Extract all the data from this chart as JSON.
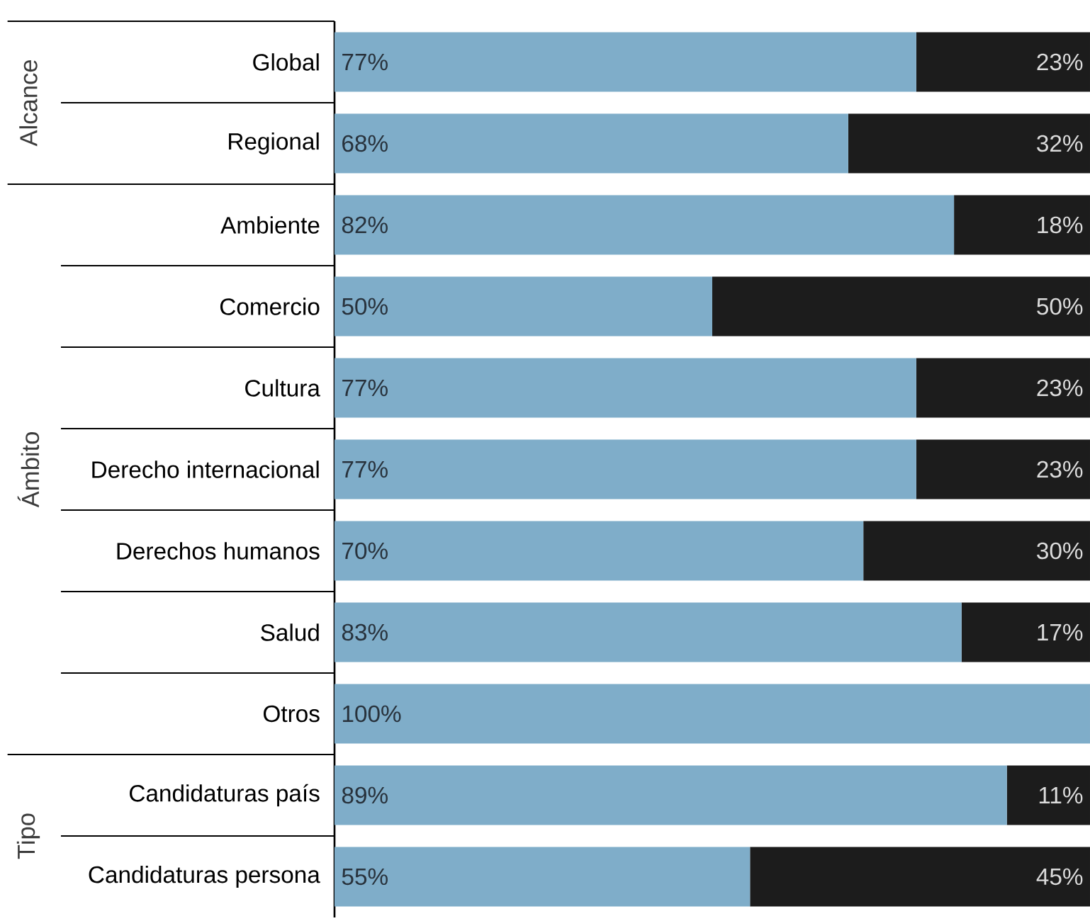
{
  "chart_data": {
    "type": "bar",
    "orientation": "horizontal",
    "stacked": true,
    "xlim": [
      0,
      100
    ],
    "tick_labels": "y",
    "categories": [
      "Global",
      "Regional",
      "Ambiente",
      "Comercio",
      "Cultura",
      "Derecho internacional",
      "Derechos humanos",
      "Salud",
      "Otros",
      "Candidaturas país",
      "Candidaturas persona"
    ],
    "annotations": [
      "Alcance",
      "Ámbito",
      "Tipo"
    ],
    "series": [
      {
        "color": "#7fadc9",
        "values": [
          77,
          68,
          82,
          50,
          77,
          77,
          70,
          83,
          100,
          89,
          55
        ],
        "value_labels": [
          "77%",
          "68%",
          "82%",
          "50%",
          "77%",
          "77%",
          "70%",
          "83%",
          "100%",
          "89%",
          "55%"
        ]
      },
      {
        "color": "#1c1c1c",
        "values": [
          23,
          32,
          18,
          50,
          23,
          23,
          30,
          17,
          0,
          11,
          45
        ],
        "value_labels": [
          "23%",
          "32%",
          "18%",
          "50%",
          "23%",
          "23%",
          "30%",
          "17%",
          null,
          "11%",
          "45%"
        ]
      }
    ]
  }
}
